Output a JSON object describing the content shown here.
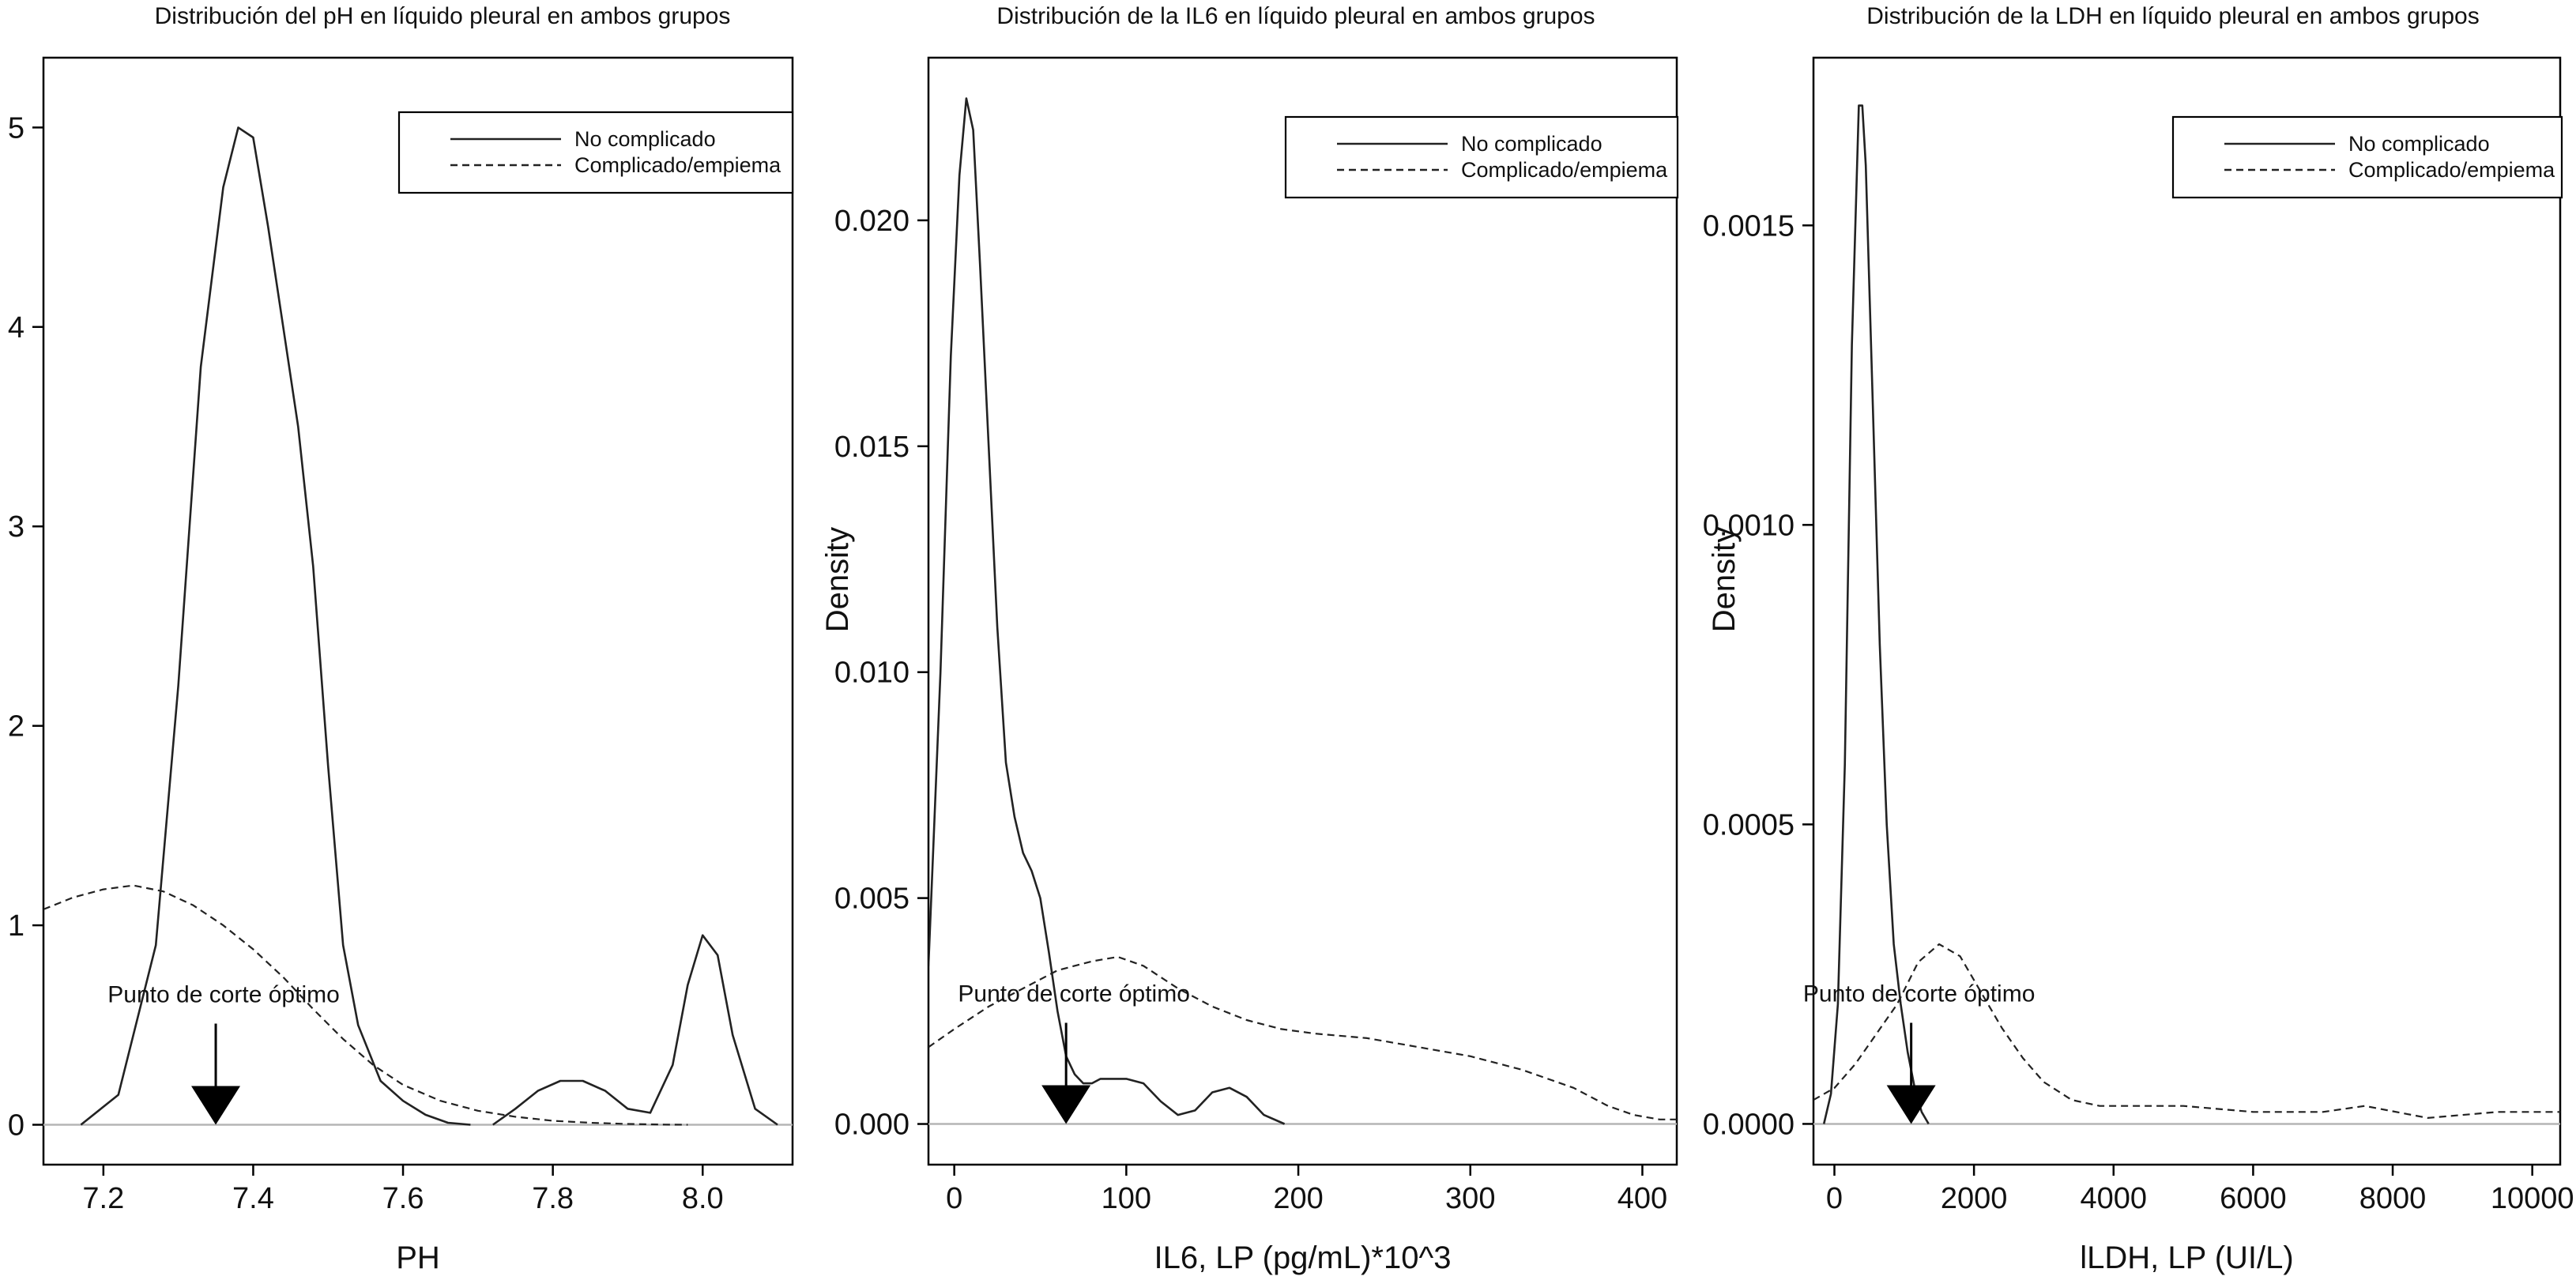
{
  "chart_data": [
    {
      "type": "line",
      "title": "Distribución del pH en líquido pleural en ambos grupos",
      "xlabel": "PH",
      "ylabel": "",
      "xlim": [
        7.12,
        8.12
      ],
      "ylim": [
        -0.2,
        5.35
      ],
      "xticks": [
        {
          "v": 7.2,
          "label": "7.2"
        },
        {
          "v": 7.4,
          "label": "7.4"
        },
        {
          "v": 7.6,
          "label": "7.6"
        },
        {
          "v": 7.8,
          "label": "7.8"
        },
        {
          "v": 8.0,
          "label": "8.0"
        }
      ],
      "yticks": [
        {
          "v": 0,
          "label": "0"
        },
        {
          "v": 1,
          "label": "1"
        },
        {
          "v": 2,
          "label": "2"
        },
        {
          "v": 3,
          "label": "3"
        },
        {
          "v": 4,
          "label": "4"
        },
        {
          "v": 5,
          "label": "5"
        }
      ],
      "legend": {
        "position": "top-right",
        "entries": [
          "No complicado",
          "Complicado/empiema"
        ]
      },
      "annotation": {
        "text": "Punto de corte óptimo",
        "x": 7.35
      },
      "series": [
        {
          "name": "No complicado",
          "dash": false,
          "x": [
            7.17,
            7.22,
            7.27,
            7.3,
            7.33,
            7.36,
            7.38,
            7.4,
            7.42,
            7.44,
            7.46,
            7.48,
            7.5,
            7.52,
            7.54,
            7.57,
            7.6,
            7.63,
            7.66,
            7.69
          ],
          "y": [
            0.0,
            0.15,
            0.9,
            2.2,
            3.8,
            4.7,
            5.0,
            4.95,
            4.5,
            4.0,
            3.5,
            2.8,
            1.8,
            0.9,
            0.5,
            0.22,
            0.12,
            0.05,
            0.01,
            0.0
          ]
        },
        {
          "name": "No complicado",
          "dash": false,
          "x": [
            7.72,
            7.75,
            7.78,
            7.81,
            7.84,
            7.87,
            7.9,
            7.93,
            7.96,
            7.98,
            8.0,
            8.02,
            8.04,
            8.07,
            8.1
          ],
          "y": [
            0.0,
            0.08,
            0.17,
            0.22,
            0.22,
            0.17,
            0.08,
            0.06,
            0.3,
            0.7,
            0.95,
            0.85,
            0.45,
            0.08,
            0.0
          ]
        },
        {
          "name": "Complicado/empiema",
          "dash": true,
          "x": [
            7.12,
            7.16,
            7.2,
            7.24,
            7.28,
            7.32,
            7.36,
            7.4,
            7.44,
            7.48,
            7.52,
            7.56,
            7.6,
            7.65,
            7.7,
            7.75,
            7.8,
            7.85,
            7.9,
            7.95,
            7.98
          ],
          "y": [
            1.08,
            1.14,
            1.18,
            1.2,
            1.17,
            1.1,
            1.0,
            0.88,
            0.74,
            0.58,
            0.43,
            0.3,
            0.2,
            0.12,
            0.07,
            0.04,
            0.02,
            0.01,
            0.004,
            0.001,
            0.0
          ]
        }
      ]
    },
    {
      "type": "line",
      "title": "Distribución de la IL6 en líquido pleural en ambos grupos",
      "xlabel": "IL6, LP (pg/mL)*10^3",
      "ylabel": "Density",
      "xlim": [
        -15,
        420
      ],
      "ylim": [
        -0.0009,
        0.0236
      ],
      "xticks": [
        {
          "v": 0,
          "label": "0"
        },
        {
          "v": 100,
          "label": "100"
        },
        {
          "v": 200,
          "label": "200"
        },
        {
          "v": 300,
          "label": "300"
        },
        {
          "v": 400,
          "label": "400"
        }
      ],
      "yticks": [
        {
          "v": 0,
          "label": "0.000"
        },
        {
          "v": 0.005,
          "label": "0.005"
        },
        {
          "v": 0.01,
          "label": "0.010"
        },
        {
          "v": 0.015,
          "label": "0.015"
        },
        {
          "v": 0.02,
          "label": "0.020"
        }
      ],
      "legend": {
        "position": "top-right",
        "entries": [
          "No complicado",
          "Complicado/empiema"
        ]
      },
      "annotation": {
        "text": "Punto de corte óptimo",
        "x": 65
      },
      "series": [
        {
          "name": "No complicado",
          "dash": false,
          "x": [
            -15,
            -8,
            -2,
            3,
            7,
            11,
            15,
            20,
            25,
            30,
            35,
            40,
            45,
            50,
            55,
            60,
            65,
            70,
            75,
            80,
            85,
            90,
            95,
            100,
            110,
            120,
            130,
            140,
            150,
            160,
            170,
            180,
            192
          ],
          "y": [
            0.0035,
            0.01,
            0.017,
            0.021,
            0.0227,
            0.022,
            0.019,
            0.015,
            0.011,
            0.008,
            0.0068,
            0.006,
            0.0056,
            0.005,
            0.0038,
            0.0025,
            0.0015,
            0.0011,
            0.0009,
            0.0009,
            0.001,
            0.001,
            0.001,
            0.001,
            0.0009,
            0.0005,
            0.0002,
            0.0003,
            0.0007,
            0.0008,
            0.0006,
            0.0002,
            0.0
          ]
        },
        {
          "name": "Complicado/empiema",
          "dash": true,
          "x": [
            -15,
            0,
            20,
            40,
            60,
            80,
            95,
            110,
            130,
            150,
            170,
            190,
            210,
            240,
            270,
            300,
            330,
            360,
            380,
            395,
            410,
            420
          ],
          "y": [
            0.0017,
            0.0021,
            0.0026,
            0.003,
            0.0034,
            0.0036,
            0.0037,
            0.0035,
            0.003,
            0.0026,
            0.0023,
            0.0021,
            0.002,
            0.0019,
            0.0017,
            0.0015,
            0.0012,
            0.0008,
            0.0004,
            0.0002,
            0.0001,
            0.0001
          ]
        }
      ]
    },
    {
      "type": "line",
      "title": "Distribución de la LDH en líquido pleural en ambos grupos",
      "xlabel": "lLDH, LP (UI/L)",
      "ylabel": "Density",
      "xlim": [
        -300,
        10400
      ],
      "ylim": [
        -6.8e-05,
        0.00178
      ],
      "xticks": [
        {
          "v": 0,
          "label": "0"
        },
        {
          "v": 2000,
          "label": "2000"
        },
        {
          "v": 4000,
          "label": "4000"
        },
        {
          "v": 6000,
          "label": "6000"
        },
        {
          "v": 8000,
          "label": "8000"
        },
        {
          "v": 10000,
          "label": "10000"
        }
      ],
      "yticks": [
        {
          "v": 0,
          "label": "0.0000"
        },
        {
          "v": 0.0005,
          "label": "0.0005"
        },
        {
          "v": 0.001,
          "label": "0.0010"
        },
        {
          "v": 0.0015,
          "label": "0.0015"
        }
      ],
      "legend": {
        "position": "top-right",
        "entries": [
          "No complicado",
          "Complicado/empiema"
        ]
      },
      "annotation": {
        "text": "Punto de corte óptimo",
        "x": 1100
      },
      "series": [
        {
          "name": "No complicado",
          "dash": false,
          "x": [
            -150,
            -50,
            50,
            150,
            250,
            350,
            400,
            450,
            550,
            650,
            750,
            850,
            950,
            1050,
            1150,
            1250,
            1350
          ],
          "y": [
            0.0,
            5e-05,
            0.0002,
            0.0006,
            0.0013,
            0.0017,
            0.0017,
            0.0016,
            0.0012,
            0.0008,
            0.0005,
            0.0003,
            0.0002,
            0.00012,
            6e-05,
            2e-05,
            0.0
          ]
        },
        {
          "name": "Complicado/empiema",
          "dash": true,
          "x": [
            -300,
            0,
            300,
            600,
            900,
            1200,
            1500,
            1800,
            2100,
            2400,
            2700,
            3000,
            3400,
            3800,
            4200,
            5000,
            6000,
            7000,
            7600,
            8500,
            9500,
            10400
          ],
          "y": [
            4e-05,
            6e-05,
            0.0001,
            0.00015,
            0.0002,
            0.00027,
            0.0003,
            0.00028,
            0.00022,
            0.00016,
            0.00011,
            7e-05,
            4e-05,
            3e-05,
            3e-05,
            3e-05,
            2e-05,
            2e-05,
            3e-05,
            1e-05,
            2e-05,
            2e-05
          ]
        }
      ]
    }
  ]
}
